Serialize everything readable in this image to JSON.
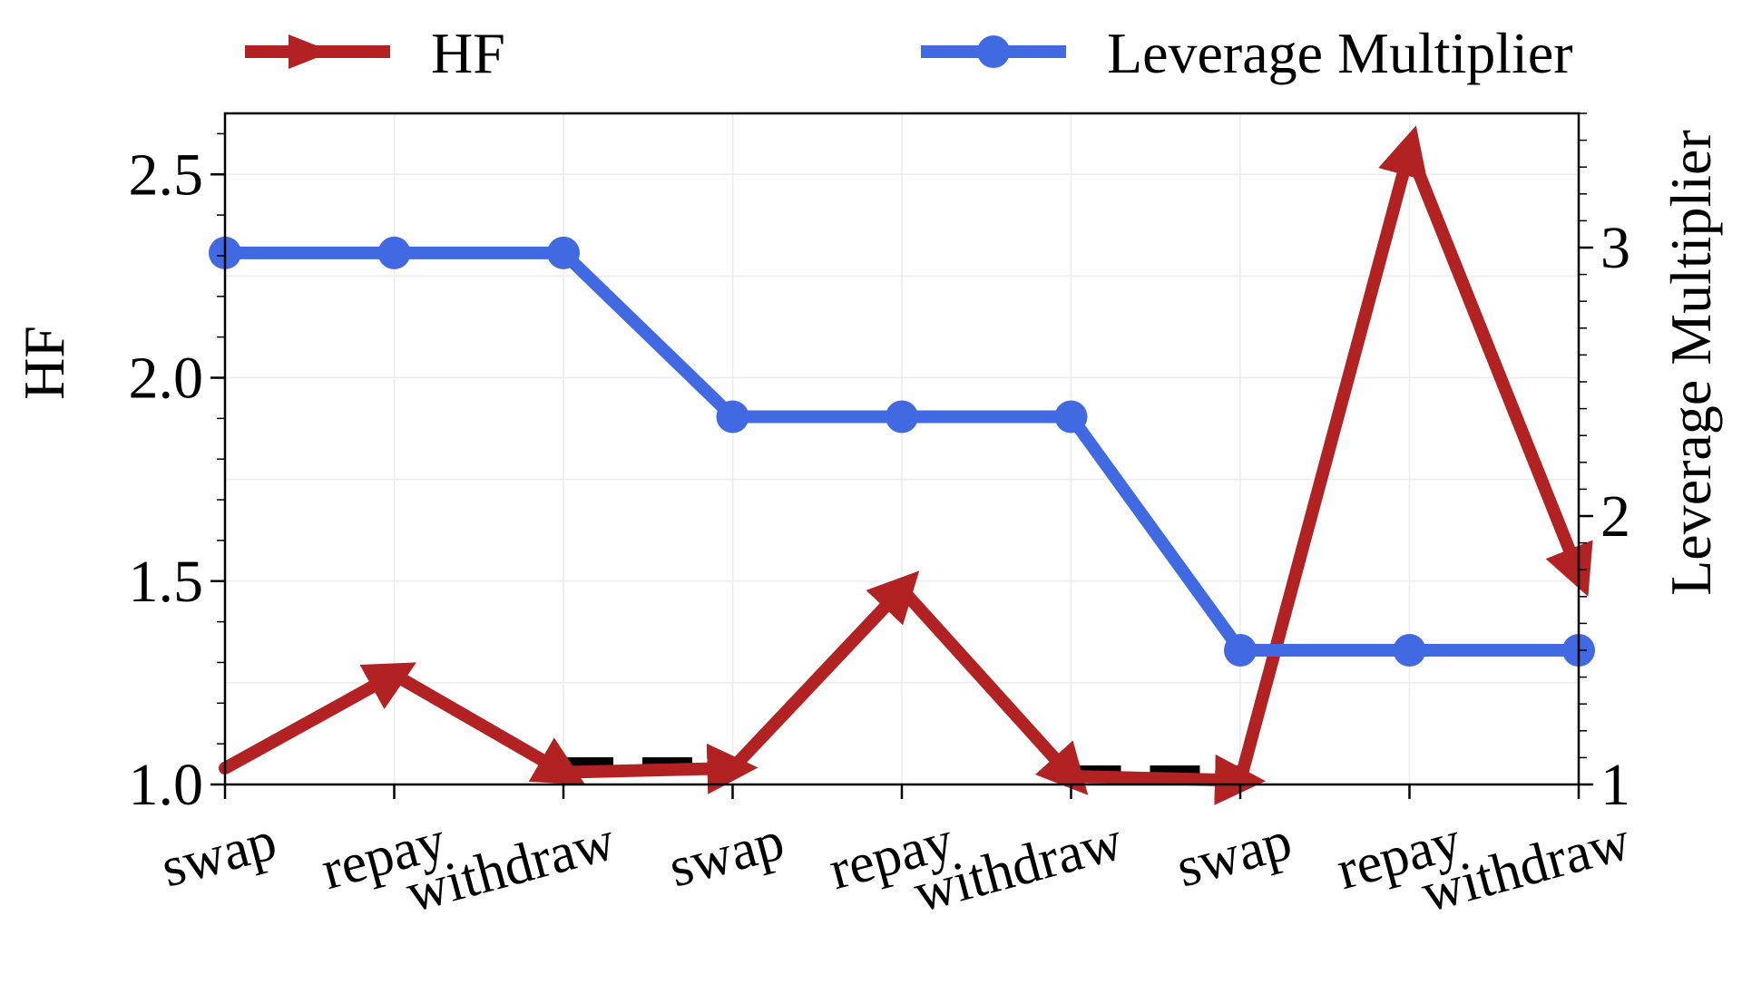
{
  "chart_data": {
    "type": "line",
    "categories": [
      "swap",
      "repay",
      "withdraw",
      "swap",
      "repay",
      "withdraw",
      "swap",
      "repay",
      "withdraw"
    ],
    "left_axis": {
      "label": "HF",
      "ylim": [
        1.0,
        2.65
      ],
      "ticks": [
        "1.0",
        "1.5",
        "2.0",
        "2.5"
      ],
      "tick_values": [
        1.0,
        1.5,
        2.0,
        2.5
      ]
    },
    "right_axis": {
      "label": "Leverage Multiplier",
      "ylim": [
        1.0,
        3.5
      ],
      "ticks": [
        "1",
        "2",
        "3"
      ],
      "tick_values": [
        1,
        2,
        3
      ]
    },
    "series": [
      {
        "name": "HF",
        "axis": "left",
        "marker": "arrow",
        "color": "#b22222",
        "values": [
          1.04,
          1.27,
          1.03,
          1.04,
          1.48,
          1.02,
          1.01,
          2.56,
          1.52
        ]
      },
      {
        "name": "Leverage Multiplier",
        "axis": "right",
        "marker": "circle",
        "color": "#4169e1",
        "values": [
          2.98,
          2.98,
          2.98,
          2.37,
          2.37,
          2.37,
          1.5,
          1.5,
          1.5
        ]
      }
    ],
    "dashed_segments": [
      {
        "from_index": 2,
        "to_index": 3,
        "value": 1.04,
        "axis": "left",
        "color": "#000000"
      },
      {
        "from_index": 5,
        "to_index": 6,
        "value": 1.02,
        "axis": "left",
        "color": "#000000"
      }
    ],
    "legend": {
      "position": "top",
      "entries": [
        "HF",
        "Leverage Multiplier"
      ]
    },
    "grid": true
  }
}
